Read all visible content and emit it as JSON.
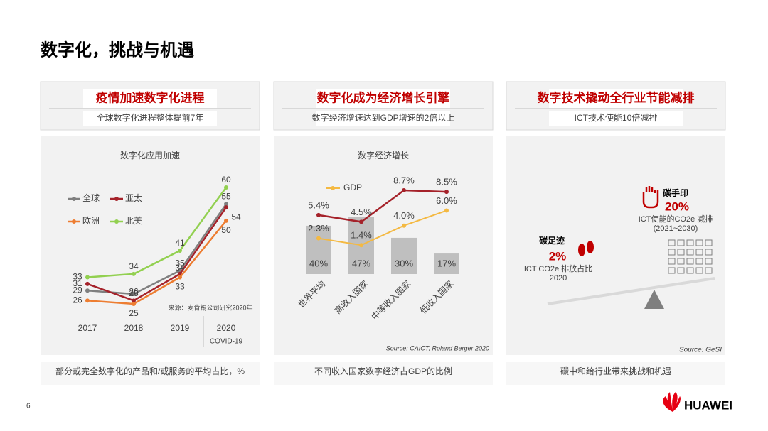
{
  "title": "数字化，挑战与机遇",
  "page_number": "6",
  "brand": "HUAWEI",
  "panels": [
    {
      "heading": "疫情加速数字化进程",
      "subheading": "全球数字化进程整体提前7年",
      "footer": "部分或完全数字化的产品和/或服务的平均占比，%"
    },
    {
      "heading": "数字化成为经济增长引擎",
      "subheading": "数字经济增速达到GDP增速的2倍以上",
      "footer": "不同收入国家数字经济占GDP的比例"
    },
    {
      "heading": "数字技术撬动全行业节能减排",
      "subheading": "ICT技术使能10倍减排",
      "footer": "碳中和给行业带来挑战和机遇",
      "handprint": {
        "label": "碳手印",
        "value": "20%",
        "desc": "ICT使能的CO2e 减排",
        "period": "(2021~2030)"
      },
      "footprint": {
        "label": "碳足迹",
        "value": "2%",
        "desc": "ICT CO2e 排放占比",
        "period": "2020"
      },
      "source": "Source:  GeSI"
    }
  ],
  "chart_data": [
    {
      "type": "line",
      "title": "数字化应用加速",
      "categories": [
        "2017",
        "2018",
        "2019",
        "2020"
      ],
      "series": [
        {
          "name": "全球",
          "color": "#7f7f7f",
          "values": [
            29,
            28,
            35,
            55
          ]
        },
        {
          "name": "亚太",
          "color": "#a5222a",
          "values": [
            31,
            26,
            34,
            54
          ]
        },
        {
          "name": "欧洲",
          "color": "#ed7d31",
          "values": [
            26,
            25,
            33,
            50
          ]
        },
        {
          "name": "北美",
          "color": "#92d050",
          "values": [
            33,
            34,
            41,
            60
          ]
        }
      ],
      "source": "来源：麦肯锡公司研究2020年",
      "annotation": "COVID-19"
    },
    {
      "type": "bar-line",
      "title": "数字经济增长",
      "categories": [
        "世界平均",
        "高收入国家",
        "中等收入国家",
        "低收入国家"
      ],
      "bars": {
        "color": "#bfbfbf",
        "values": [
          40,
          47,
          30,
          17
        ],
        "value_labels": [
          "40%",
          "47%",
          "30%",
          "17%"
        ]
      },
      "series": [
        {
          "color": "#a5222a",
          "values": [
            5.4,
            4.5,
            8.7,
            8.5
          ],
          "value_labels": [
            "5.4%",
            "4.5%",
            "8.7%",
            "8.5%"
          ]
        },
        {
          "name": "GDP",
          "color": "#f4b942",
          "values": [
            2.3,
            1.4,
            4.0,
            6.0
          ],
          "value_labels": [
            "2.3%",
            "1.4%",
            "4.0%",
            "6.0%"
          ]
        }
      ],
      "source": "Source:  CAICT, Roland Berger 2020"
    }
  ]
}
